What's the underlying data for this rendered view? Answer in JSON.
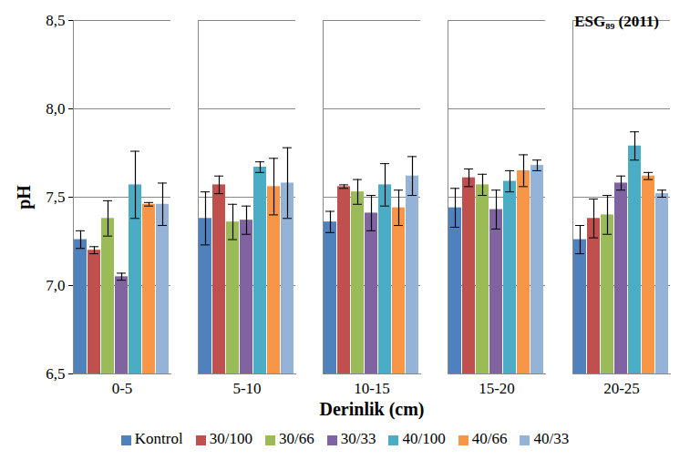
{
  "chart_data": {
    "type": "bar",
    "title": "ESG₈₉ (2011)",
    "x_label": "Derinlik (cm)",
    "y_label": "pH",
    "categories": [
      "0-5",
      "5-10",
      "10-15",
      "15-20",
      "20-25"
    ],
    "series": [
      {
        "name": "Kontrol",
        "color": "#4F81BD",
        "values": [
          7.26,
          7.38,
          7.36,
          7.44,
          7.26
        ],
        "errors": [
          0.05,
          0.15,
          0.06,
          0.11,
          0.08
        ]
      },
      {
        "name": "30/100",
        "color": "#C0504D",
        "values": [
          7.2,
          7.57,
          7.56,
          7.61,
          7.38
        ],
        "errors": [
          0.02,
          0.05,
          0.01,
          0.05,
          0.11
        ]
      },
      {
        "name": "30/66",
        "color": "#9BBB59",
        "values": [
          7.38,
          7.36,
          7.53,
          7.57,
          7.4
        ],
        "errors": [
          0.1,
          0.1,
          0.07,
          0.06,
          0.11
        ]
      },
      {
        "name": "30/33",
        "color": "#8064A2",
        "values": [
          7.05,
          7.37,
          7.41,
          7.43,
          7.58
        ],
        "errors": [
          0.02,
          0.08,
          0.1,
          0.11,
          0.04
        ]
      },
      {
        "name": "40/100",
        "color": "#4BACC6",
        "values": [
          7.57,
          7.67,
          7.57,
          7.59,
          7.79
        ],
        "errors": [
          0.19,
          0.03,
          0.12,
          0.06,
          0.08
        ]
      },
      {
        "name": "40/66",
        "color": "#F79646",
        "values": [
          7.46,
          7.56,
          7.44,
          7.65,
          7.62
        ],
        "errors": [
          0.01,
          0.16,
          0.1,
          0.09,
          0.02
        ]
      },
      {
        "name": "40/33",
        "color": "#95B3D7",
        "values": [
          7.46,
          7.58,
          7.62,
          7.68,
          7.52
        ],
        "errors": [
          0.12,
          0.2,
          0.11,
          0.03,
          0.02
        ]
      }
    ],
    "ylim": [
      6.5,
      8.5
    ],
    "yticks": [
      {
        "value": 6.5,
        "label": "6,5"
      },
      {
        "value": 7.0,
        "label": "7,0"
      },
      {
        "value": 7.5,
        "label": "7,5"
      },
      {
        "value": 8.0,
        "label": "8,0"
      },
      {
        "value": 8.5,
        "label": "8,5"
      }
    ],
    "grid": true,
    "legend": "bottom"
  }
}
